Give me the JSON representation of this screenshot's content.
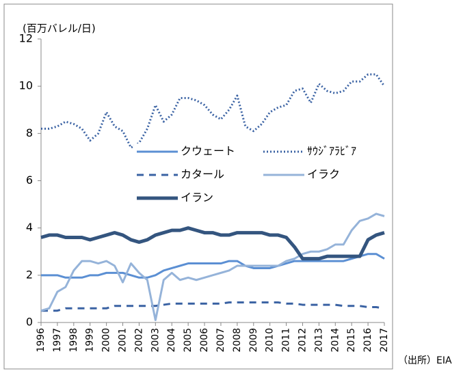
{
  "chart_data": {
    "type": "line",
    "y_label": "(百万バレル/日)",
    "source": "（出所）EIA",
    "x": [
      1996,
      1996.5,
      1997,
      1997.5,
      1998,
      1998.5,
      1999,
      1999.5,
      2000,
      2000.5,
      2001,
      2001.5,
      2002,
      2002.5,
      2003,
      2003.5,
      2004,
      2004.5,
      2005,
      2005.5,
      2006,
      2006.5,
      2007,
      2007.5,
      2008,
      2008.5,
      2009,
      2009.5,
      2010,
      2010.5,
      2011,
      2011.5,
      2012,
      2012.5,
      2013,
      2013.5,
      2014,
      2014.5,
      2015,
      2015.5,
      2016,
      2016.5,
      2017
    ],
    "xlim": [
      1996,
      2017
    ],
    "xticks": [
      1996,
      1997,
      1998,
      1999,
      2000,
      2001,
      2002,
      2003,
      2004,
      2005,
      2006,
      2007,
      2008,
      2009,
      2010,
      2011,
      2012,
      2013,
      2014,
      2015,
      2016,
      2017
    ],
    "ylim": [
      0,
      12
    ],
    "yticks": [
      0,
      2,
      4,
      6,
      8,
      10,
      12
    ],
    "grid": false,
    "series": [
      {
        "name": "クウェート",
        "color": "#5b8fd3",
        "line_style": "solid",
        "values": [
          2.0,
          2.0,
          2.0,
          1.9,
          1.9,
          1.9,
          2.0,
          2.0,
          2.1,
          2.1,
          2.1,
          2.0,
          1.9,
          1.9,
          2.0,
          2.2,
          2.3,
          2.4,
          2.5,
          2.5,
          2.5,
          2.5,
          2.5,
          2.6,
          2.6,
          2.4,
          2.3,
          2.3,
          2.3,
          2.4,
          2.5,
          2.6,
          2.6,
          2.6,
          2.6,
          2.6,
          2.6,
          2.6,
          2.7,
          2.8,
          2.9,
          2.9,
          2.7
        ]
      },
      {
        "name": "ｻｳｼﾞｱﾗﾋﾞｱ",
        "color": "#3a62a3",
        "line_style": "dotted",
        "values": [
          8.2,
          8.2,
          8.3,
          8.5,
          8.4,
          8.2,
          7.7,
          8.0,
          8.9,
          8.3,
          8.1,
          7.4,
          7.6,
          8.2,
          9.2,
          8.5,
          8.8,
          9.5,
          9.5,
          9.4,
          9.2,
          8.8,
          8.6,
          9.0,
          9.6,
          8.3,
          8.1,
          8.4,
          8.9,
          9.1,
          9.2,
          9.8,
          9.9,
          9.3,
          10.1,
          9.8,
          9.7,
          9.8,
          10.2,
          10.2,
          10.5,
          10.5,
          10.0
        ]
      },
      {
        "name": "カタール",
        "color": "#3a62a3",
        "line_style": "dashed",
        "values": [
          0.5,
          0.5,
          0.5,
          0.6,
          0.6,
          0.6,
          0.6,
          0.6,
          0.6,
          0.7,
          0.7,
          0.7,
          0.7,
          0.7,
          0.7,
          0.75,
          0.8,
          0.8,
          0.8,
          0.8,
          0.8,
          0.8,
          0.8,
          0.85,
          0.85,
          0.85,
          0.85,
          0.85,
          0.85,
          0.85,
          0.8,
          0.8,
          0.75,
          0.75,
          0.75,
          0.75,
          0.75,
          0.7,
          0.7,
          0.7,
          0.65,
          0.65,
          0.6
        ]
      },
      {
        "name": "イラク",
        "color": "#95b3d9",
        "line_style": "solid",
        "values": [
          0.5,
          0.6,
          1.3,
          1.5,
          2.2,
          2.6,
          2.6,
          2.5,
          2.6,
          2.4,
          1.7,
          2.5,
          2.1,
          1.8,
          0.1,
          1.8,
          2.1,
          1.8,
          1.9,
          1.8,
          1.9,
          2.0,
          2.1,
          2.2,
          2.4,
          2.4,
          2.4,
          2.4,
          2.4,
          2.4,
          2.6,
          2.7,
          2.9,
          3.0,
          3.0,
          3.1,
          3.3,
          3.3,
          3.9,
          4.3,
          4.4,
          4.6,
          4.5
        ]
      },
      {
        "name": "イラン",
        "color": "#34557f",
        "line_style": "thick",
        "values": [
          3.6,
          3.7,
          3.7,
          3.6,
          3.6,
          3.6,
          3.5,
          3.6,
          3.7,
          3.8,
          3.7,
          3.5,
          3.4,
          3.5,
          3.7,
          3.8,
          3.9,
          3.9,
          4.0,
          3.9,
          3.8,
          3.8,
          3.7,
          3.7,
          3.8,
          3.8,
          3.8,
          3.8,
          3.7,
          3.7,
          3.6,
          3.2,
          2.7,
          2.7,
          2.7,
          2.8,
          2.8,
          2.8,
          2.8,
          2.8,
          3.5,
          3.7,
          3.8
        ]
      }
    ]
  }
}
